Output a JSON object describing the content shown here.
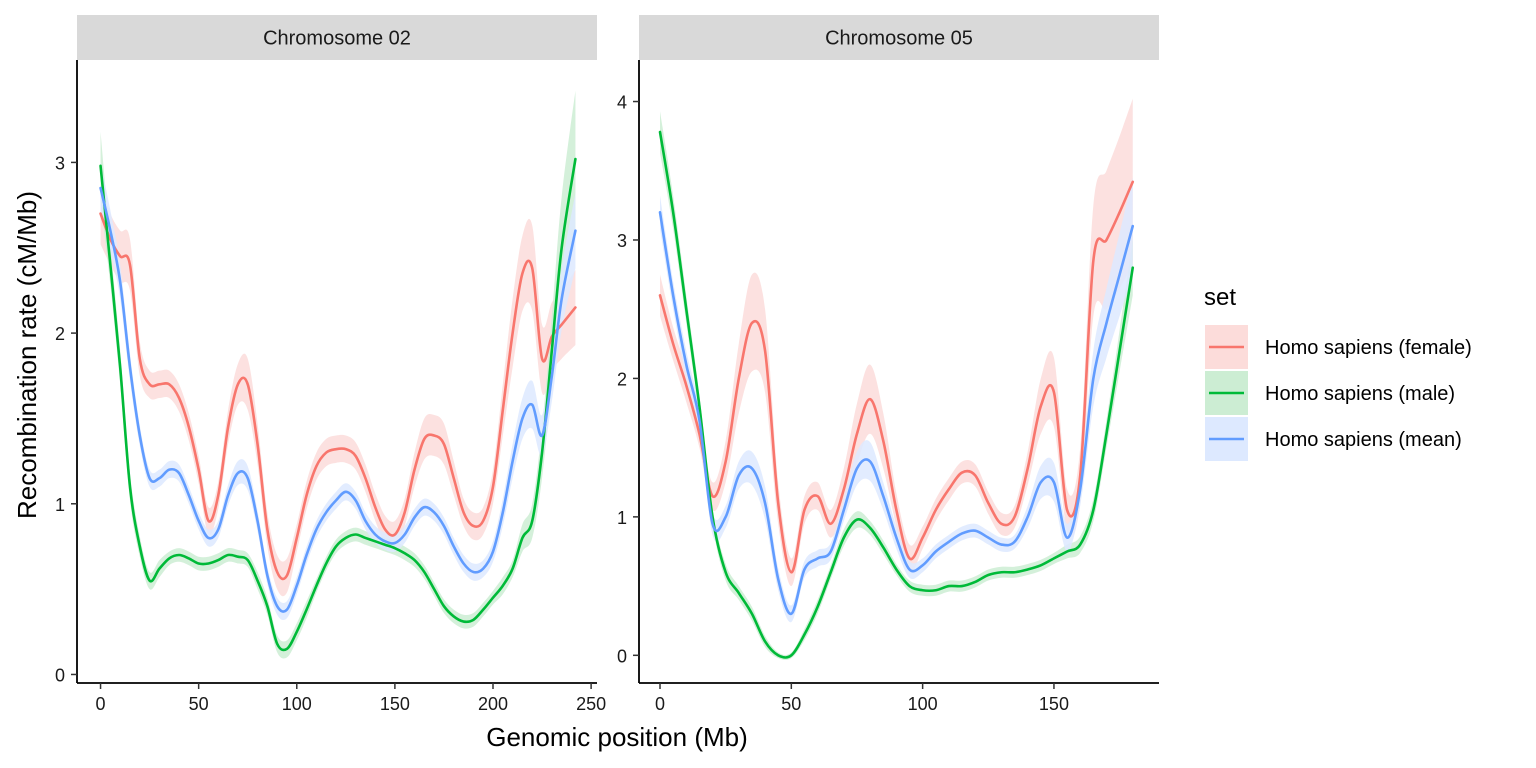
{
  "chart_data": {
    "type": "line",
    "xlabel": "Genomic position (Mb)",
    "ylabel": "Recombination rate (cM/Mb)",
    "legend": {
      "title": "set",
      "placement": "right",
      "entries": [
        {
          "label": "Homo sapiens (female)",
          "color": "#F8766D",
          "fill": "#FCDCDA"
        },
        {
          "label": "Homo sapiens (male)",
          "color": "#00BA38",
          "fill": "#CCEDD3"
        },
        {
          "label": "Homo sapiens (mean)",
          "color": "#619CFF",
          "fill": "#DDE9FF"
        }
      ]
    },
    "panels": [
      {
        "strip": "Chromosome 02",
        "xlim": [
          -12,
          253
        ],
        "ylim": [
          -0.05,
          3.6
        ],
        "xticks": [
          0,
          50,
          100,
          150,
          200,
          250
        ],
        "xtick_labels": [
          "0",
          "50",
          "100",
          "150",
          "200",
          "250"
        ],
        "yticks": [
          0,
          1,
          2,
          3
        ],
        "ytick_labels": [
          "0",
          "1",
          "2",
          "3"
        ],
        "series": [
          {
            "name": "Homo sapiens (female)",
            "color": "#F8766D",
            "fill": "#FCDCDA",
            "x": [
              0,
              5,
              10,
              15,
              20,
              25,
              30,
              35,
              40,
              45,
              50,
              55,
              60,
              65,
              70,
              75,
              80,
              85,
              90,
              95,
              100,
              105,
              110,
              115,
              120,
              125,
              130,
              135,
              140,
              145,
              150,
              155,
              160,
              165,
              170,
              175,
              180,
              185,
              190,
              195,
              200,
              205,
              210,
              215,
              220,
              225,
              230,
              235,
              242
            ],
            "y": [
              2.7,
              2.55,
              2.45,
              2.4,
              1.85,
              1.7,
              1.7,
              1.7,
              1.62,
              1.45,
              1.2,
              0.9,
              1.05,
              1.45,
              1.7,
              1.7,
              1.35,
              0.85,
              0.6,
              0.58,
              0.8,
              1.05,
              1.22,
              1.3,
              1.32,
              1.32,
              1.28,
              1.15,
              0.98,
              0.85,
              0.82,
              0.95,
              1.2,
              1.38,
              1.4,
              1.35,
              1.15,
              0.95,
              0.87,
              0.9,
              1.1,
              1.55,
              2.0,
              2.35,
              2.38,
              1.85,
              1.98,
              2.05,
              2.15
            ],
            "band": [
              0.18,
              0.15,
              0.15,
              0.15,
              0.1,
              0.08,
              0.08,
              0.08,
              0.08,
              0.08,
              0.08,
              0.08,
              0.08,
              0.1,
              0.12,
              0.15,
              0.12,
              0.1,
              0.1,
              0.1,
              0.08,
              0.08,
              0.08,
              0.08,
              0.08,
              0.08,
              0.08,
              0.08,
              0.08,
              0.08,
              0.08,
              0.08,
              0.1,
              0.12,
              0.12,
              0.12,
              0.1,
              0.08,
              0.08,
              0.08,
              0.1,
              0.15,
              0.2,
              0.22,
              0.25,
              0.2,
              0.2,
              0.2,
              0.22
            ]
          },
          {
            "name": "Homo sapiens (male)",
            "color": "#00BA38",
            "fill": "#CCEDD3",
            "x": [
              0,
              5,
              10,
              15,
              20,
              25,
              30,
              35,
              40,
              45,
              50,
              55,
              60,
              65,
              70,
              75,
              80,
              85,
              90,
              95,
              100,
              105,
              110,
              115,
              120,
              125,
              130,
              135,
              140,
              145,
              150,
              155,
              160,
              165,
              170,
              175,
              180,
              185,
              190,
              195,
              200,
              205,
              210,
              215,
              220,
              225,
              230,
              235,
              242
            ],
            "y": [
              2.98,
              2.4,
              1.8,
              1.1,
              0.75,
              0.55,
              0.62,
              0.68,
              0.7,
              0.68,
              0.65,
              0.65,
              0.67,
              0.7,
              0.69,
              0.67,
              0.55,
              0.4,
              0.18,
              0.15,
              0.25,
              0.38,
              0.52,
              0.65,
              0.75,
              0.8,
              0.82,
              0.8,
              0.78,
              0.76,
              0.74,
              0.71,
              0.67,
              0.6,
              0.5,
              0.4,
              0.34,
              0.31,
              0.32,
              0.38,
              0.45,
              0.52,
              0.62,
              0.8,
              0.9,
              1.3,
              1.9,
              2.5,
              3.02
            ],
            "band": [
              0.2,
              0.12,
              0.1,
              0.08,
              0.06,
              0.05,
              0.05,
              0.04,
              0.04,
              0.04,
              0.04,
              0.04,
              0.04,
              0.04,
              0.04,
              0.04,
              0.05,
              0.05,
              0.05,
              0.05,
              0.05,
              0.05,
              0.04,
              0.04,
              0.04,
              0.04,
              0.04,
              0.04,
              0.04,
              0.04,
              0.04,
              0.04,
              0.04,
              0.04,
              0.04,
              0.04,
              0.04,
              0.04,
              0.04,
              0.04,
              0.04,
              0.05,
              0.05,
              0.08,
              0.1,
              0.15,
              0.2,
              0.3,
              0.4
            ]
          },
          {
            "name": "Homo sapiens (mean)",
            "color": "#619CFF",
            "fill": "#DDE9FF",
            "x": [
              0,
              5,
              10,
              15,
              20,
              25,
              30,
              35,
              40,
              45,
              50,
              55,
              60,
              65,
              70,
              75,
              80,
              85,
              90,
              95,
              100,
              105,
              110,
              115,
              120,
              125,
              130,
              135,
              140,
              145,
              150,
              155,
              160,
              165,
              170,
              175,
              180,
              185,
              190,
              195,
              200,
              205,
              210,
              215,
              220,
              225,
              230,
              235,
              242
            ],
            "y": [
              2.85,
              2.6,
              2.3,
              1.8,
              1.4,
              1.15,
              1.15,
              1.2,
              1.18,
              1.05,
              0.9,
              0.8,
              0.85,
              1.05,
              1.18,
              1.15,
              0.9,
              0.58,
              0.4,
              0.38,
              0.52,
              0.7,
              0.85,
              0.95,
              1.02,
              1.07,
              1.02,
              0.9,
              0.82,
              0.78,
              0.77,
              0.82,
              0.92,
              0.98,
              0.95,
              0.87,
              0.75,
              0.65,
              0.6,
              0.62,
              0.72,
              0.95,
              1.25,
              1.5,
              1.58,
              1.4,
              1.75,
              2.2,
              2.6
            ],
            "band": [
              0.15,
              0.12,
              0.1,
              0.08,
              0.06,
              0.05,
              0.05,
              0.05,
              0.05,
              0.05,
              0.05,
              0.05,
              0.05,
              0.06,
              0.07,
              0.07,
              0.06,
              0.05,
              0.05,
              0.05,
              0.05,
              0.05,
              0.05,
              0.05,
              0.05,
              0.05,
              0.05,
              0.05,
              0.05,
              0.05,
              0.05,
              0.05,
              0.05,
              0.05,
              0.05,
              0.05,
              0.05,
              0.05,
              0.05,
              0.05,
              0.06,
              0.08,
              0.1,
              0.12,
              0.14,
              0.12,
              0.15,
              0.18,
              0.22
            ]
          }
        ]
      },
      {
        "strip": "Chromosome 05",
        "xlim": [
          -8,
          190
        ],
        "ylim": [
          -0.2,
          4.3
        ],
        "xticks": [
          0,
          50,
          100,
          150
        ],
        "xtick_labels": [
          "0",
          "50",
          "100",
          "150"
        ],
        "yticks": [
          0,
          1,
          2,
          3,
          4
        ],
        "ytick_labels": [
          "0",
          "1",
          "2",
          "3",
          "4"
        ],
        "series": [
          {
            "name": "Homo sapiens (female)",
            "color": "#F8766D",
            "fill": "#FCDCDA",
            "x": [
              0,
              5,
              10,
              15,
              20,
              25,
              30,
              35,
              40,
              45,
              50,
              55,
              60,
              65,
              70,
              75,
              80,
              85,
              90,
              95,
              100,
              105,
              110,
              115,
              120,
              125,
              130,
              135,
              140,
              145,
              150,
              155,
              160,
              165,
              170,
              175,
              180
            ],
            "y": [
              2.6,
              2.25,
              1.95,
              1.6,
              1.15,
              1.4,
              2.0,
              2.4,
              2.2,
              1.1,
              0.6,
              1.05,
              1.15,
              0.95,
              1.2,
              1.6,
              1.85,
              1.55,
              1.05,
              0.7,
              0.85,
              1.05,
              1.2,
              1.32,
              1.3,
              1.1,
              0.95,
              1.0,
              1.35,
              1.8,
              1.9,
              1.05,
              1.3,
              2.85,
              3.0,
              3.2,
              3.42
            ],
            "band": [
              0.15,
              0.12,
              0.12,
              0.1,
              0.1,
              0.15,
              0.25,
              0.35,
              0.3,
              0.15,
              0.1,
              0.1,
              0.1,
              0.1,
              0.15,
              0.22,
              0.25,
              0.2,
              0.12,
              0.1,
              0.08,
              0.08,
              0.08,
              0.08,
              0.08,
              0.08,
              0.08,
              0.08,
              0.12,
              0.2,
              0.25,
              0.15,
              0.2,
              0.4,
              0.5,
              0.55,
              0.6
            ]
          },
          {
            "name": "Homo sapiens (male)",
            "color": "#00BA38",
            "fill": "#CCEDD3",
            "x": [
              0,
              5,
              10,
              15,
              20,
              25,
              30,
              35,
              40,
              45,
              50,
              55,
              60,
              65,
              70,
              75,
              80,
              85,
              90,
              95,
              100,
              105,
              110,
              115,
              120,
              125,
              130,
              135,
              140,
              145,
              150,
              155,
              160,
              165,
              170,
              175,
              180
            ],
            "y": [
              3.78,
              3.2,
              2.5,
              1.8,
              1.0,
              0.6,
              0.45,
              0.3,
              0.1,
              0.0,
              0.0,
              0.15,
              0.35,
              0.6,
              0.85,
              0.98,
              0.92,
              0.78,
              0.62,
              0.5,
              0.47,
              0.47,
              0.5,
              0.5,
              0.53,
              0.58,
              0.6,
              0.6,
              0.62,
              0.65,
              0.7,
              0.75,
              0.8,
              1.05,
              1.6,
              2.2,
              2.8
            ],
            "band": [
              0.15,
              0.12,
              0.1,
              0.08,
              0.06,
              0.06,
              0.05,
              0.05,
              0.04,
              0.02,
              0.02,
              0.04,
              0.05,
              0.05,
              0.06,
              0.06,
              0.05,
              0.05,
              0.04,
              0.04,
              0.04,
              0.04,
              0.04,
              0.04,
              0.04,
              0.04,
              0.04,
              0.04,
              0.04,
              0.04,
              0.04,
              0.05,
              0.06,
              0.08,
              0.1,
              0.15,
              0.2
            ]
          },
          {
            "name": "Homo sapiens (mean)",
            "color": "#619CFF",
            "fill": "#DDE9FF",
            "x": [
              0,
              5,
              10,
              15,
              20,
              25,
              30,
              35,
              40,
              45,
              50,
              55,
              60,
              65,
              70,
              75,
              80,
              85,
              90,
              95,
              100,
              105,
              110,
              115,
              120,
              125,
              130,
              135,
              140,
              145,
              150,
              155,
              160,
              165,
              170,
              175,
              180
            ],
            "y": [
              3.2,
              2.6,
              2.1,
              1.7,
              0.95,
              1.0,
              1.3,
              1.35,
              1.1,
              0.55,
              0.3,
              0.62,
              0.7,
              0.75,
              1.05,
              1.35,
              1.4,
              1.15,
              0.85,
              0.62,
              0.65,
              0.75,
              0.82,
              0.88,
              0.9,
              0.85,
              0.8,
              0.82,
              1.0,
              1.25,
              1.25,
              0.85,
              1.2,
              2.0,
              2.4,
              2.75,
              3.1
            ],
            "band": [
              0.12,
              0.1,
              0.1,
              0.08,
              0.08,
              0.08,
              0.1,
              0.12,
              0.12,
              0.08,
              0.06,
              0.06,
              0.06,
              0.06,
              0.08,
              0.12,
              0.14,
              0.1,
              0.08,
              0.06,
              0.05,
              0.05,
              0.05,
              0.05,
              0.05,
              0.05,
              0.05,
              0.05,
              0.08,
              0.12,
              0.14,
              0.1,
              0.12,
              0.2,
              0.25,
              0.3,
              0.35
            ]
          }
        ]
      }
    ]
  }
}
